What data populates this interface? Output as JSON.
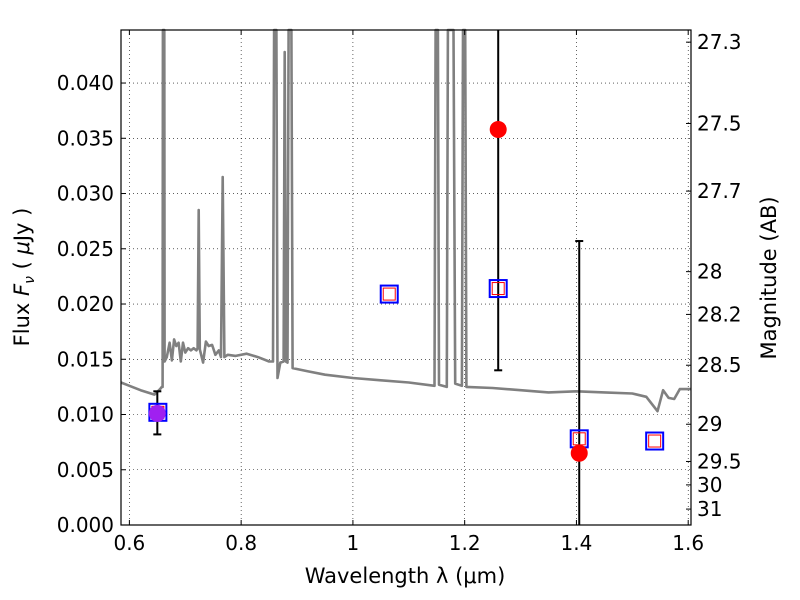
{
  "chart_data": {
    "type": "scatter",
    "xlabel": "Wavelength  λ (μm)",
    "ylabel": "Flux  F_ν  ( μJy )",
    "y2label": "Magnitude (AB)",
    "xlim": [
      0.585,
      1.605
    ],
    "ylim": [
      0.0,
      0.0448
    ],
    "grid": true,
    "x_ticks": [
      {
        "value": 0.6,
        "label": "0.6"
      },
      {
        "value": 0.8,
        "label": "0.8"
      },
      {
        "value": 1.0,
        "label": "1"
      },
      {
        "value": 1.2,
        "label": "1.2"
      },
      {
        "value": 1.4,
        "label": "1.4"
      },
      {
        "value": 1.6,
        "label": "1.6"
      }
    ],
    "y_ticks": [
      {
        "value": 0.0,
        "label": "0.000"
      },
      {
        "value": 0.005,
        "label": "0.005"
      },
      {
        "value": 0.01,
        "label": "0.010"
      },
      {
        "value": 0.015,
        "label": "0.015"
      },
      {
        "value": 0.02,
        "label": "0.020"
      },
      {
        "value": 0.025,
        "label": "0.025"
      },
      {
        "value": 0.03,
        "label": "0.030"
      },
      {
        "value": 0.035,
        "label": "0.035"
      },
      {
        "value": 0.04,
        "label": "0.040"
      }
    ],
    "y2_ticks": [
      {
        "label": "27.3",
        "flux": 0.0437
      },
      {
        "label": "27.5",
        "flux": 0.03634
      },
      {
        "label": "27.7",
        "flux": 0.03022
      },
      {
        "label": "28",
        "flux": 0.02293
      },
      {
        "label": "28.2",
        "flux": 0.01906
      },
      {
        "label": "28.5",
        "flux": 0.01446
      },
      {
        "label": "29",
        "flux": 0.00912
      },
      {
        "label": "29.5",
        "flux": 0.00575
      },
      {
        "label": "30",
        "flux": 0.00363
      },
      {
        "label": "31",
        "flux": 0.00144
      }
    ],
    "model_spectrum": {
      "color": "#808080",
      "points": [
        [
          0.585,
          0.0129
        ],
        [
          0.62,
          0.0122
        ],
        [
          0.645,
          0.0118
        ],
        [
          0.655,
          0.0123
        ],
        [
          0.658,
          0.0125
        ],
        [
          0.6595,
          0.0125
        ],
        [
          0.66,
          0.0448
        ],
        [
          0.6625,
          0.0448
        ],
        [
          0.663,
          0.0148
        ],
        [
          0.667,
          0.0152
        ],
        [
          0.672,
          0.0165
        ],
        [
          0.676,
          0.0149
        ],
        [
          0.68,
          0.0168
        ],
        [
          0.684,
          0.0162
        ],
        [
          0.688,
          0.0165
        ],
        [
          0.692,
          0.0148
        ],
        [
          0.696,
          0.0165
        ],
        [
          0.7,
          0.0156
        ],
        [
          0.705,
          0.016
        ],
        [
          0.71,
          0.0158
        ],
        [
          0.715,
          0.016
        ],
        [
          0.72,
          0.0158
        ],
        [
          0.722,
          0.016
        ],
        [
          0.724,
          0.0285
        ],
        [
          0.726,
          0.0159
        ],
        [
          0.732,
          0.0147
        ],
        [
          0.737,
          0.0166
        ],
        [
          0.742,
          0.0162
        ],
        [
          0.748,
          0.0163
        ],
        [
          0.754,
          0.0154
        ],
        [
          0.76,
          0.0158
        ],
        [
          0.764,
          0.0152
        ],
        [
          0.767,
          0.0315
        ],
        [
          0.77,
          0.0152
        ],
        [
          0.776,
          0.0154
        ],
        [
          0.79,
          0.0153
        ],
        [
          0.81,
          0.0155
        ],
        [
          0.83,
          0.0152
        ],
        [
          0.85,
          0.0148
        ],
        [
          0.857,
          0.0148
        ],
        [
          0.859,
          0.0448
        ],
        [
          0.863,
          0.0448
        ],
        [
          0.865,
          0.0133
        ],
        [
          0.87,
          0.0147
        ],
        [
          0.876,
          0.0148
        ],
        [
          0.878,
          0.0428
        ],
        [
          0.88,
          0.0148
        ],
        [
          0.883,
          0.0147
        ],
        [
          0.885,
          0.0448
        ],
        [
          0.89,
          0.0448
        ],
        [
          0.892,
          0.0142
        ],
        [
          0.92,
          0.0139
        ],
        [
          0.95,
          0.0136
        ],
        [
          1.0,
          0.0133
        ],
        [
          1.05,
          0.0131
        ],
        [
          1.1,
          0.0129
        ],
        [
          1.146,
          0.0126
        ],
        [
          1.148,
          0.0448
        ],
        [
          1.152,
          0.0448
        ],
        [
          1.154,
          0.0127
        ],
        [
          1.168,
          0.0125
        ],
        [
          1.17,
          0.0448
        ],
        [
          1.18,
          0.0448
        ],
        [
          1.183,
          0.0128
        ],
        [
          1.195,
          0.0126
        ],
        [
          1.197,
          0.0448
        ],
        [
          1.201,
          0.0448
        ],
        [
          1.203,
          0.0125
        ],
        [
          1.25,
          0.0124
        ],
        [
          1.3,
          0.0122
        ],
        [
          1.35,
          0.012
        ],
        [
          1.4,
          0.0121
        ],
        [
          1.45,
          0.012
        ],
        [
          1.5,
          0.0119
        ],
        [
          1.525,
          0.0116
        ],
        [
          1.545,
          0.0103
        ],
        [
          1.555,
          0.0122
        ],
        [
          1.565,
          0.0115
        ],
        [
          1.575,
          0.0114
        ],
        [
          1.585,
          0.0123
        ],
        [
          1.605,
          0.0123
        ]
      ]
    },
    "model_photometry": {
      "marker": "open-square",
      "outer_color": "#0000ff",
      "inner_color": "#ff0000",
      "points": [
        {
          "x": 0.651,
          "y": 0.0102
        },
        {
          "x": 1.065,
          "y": 0.0209
        },
        {
          "x": 1.26,
          "y": 0.0214
        },
        {
          "x": 1.405,
          "y": 0.0078
        },
        {
          "x": 1.54,
          "y": 0.0076
        }
      ]
    },
    "observed": {
      "marker": "filled-circle",
      "color": "#ff0000",
      "overlap_color": "#a020f0",
      "points": [
        {
          "x": 0.65,
          "y": 0.0101,
          "err_low": 0.0082,
          "err_high": 0.0121
        },
        {
          "x": 1.26,
          "y": 0.0358,
          "err_low": 0.014,
          "err_high": 0.0448
        },
        {
          "x": 1.405,
          "y": 0.0065,
          "err_low": 0.0,
          "err_high": 0.0257
        }
      ]
    }
  }
}
